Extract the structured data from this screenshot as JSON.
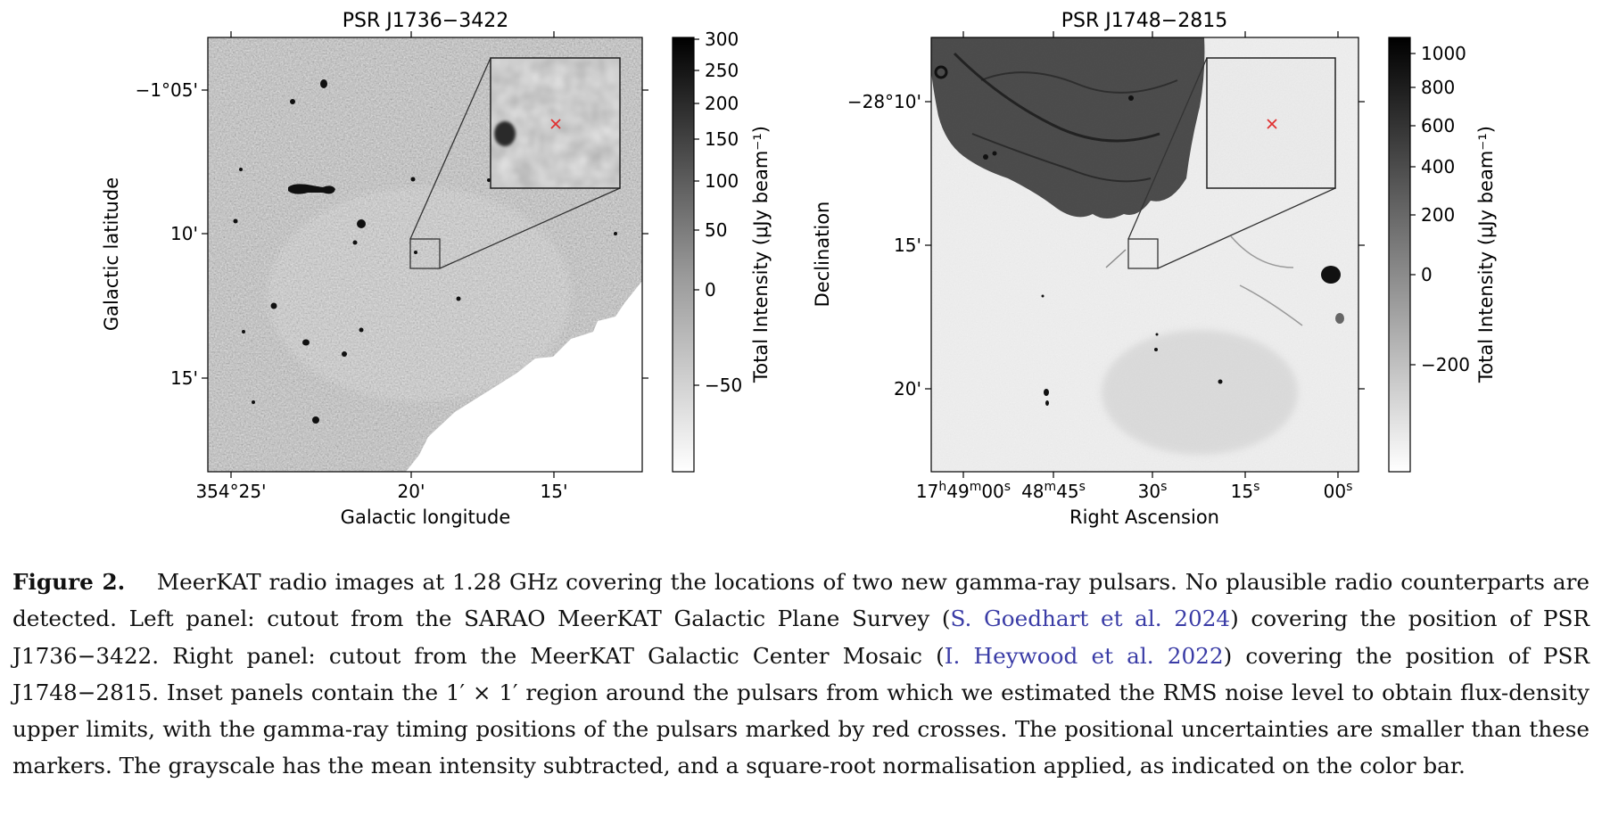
{
  "left_panel": {
    "title": "PSR J1736−3422",
    "xlabel": "Galactic longitude",
    "ylabel": "Galactic latitude",
    "xticks": [
      "354°25'",
      "20'",
      "15'"
    ],
    "yticks": [
      "−1°05'",
      "10'",
      "15'"
    ],
    "colorbar": {
      "label": "Total Intensity (μJy beam⁻¹)",
      "ticks": [
        "300",
        "250",
        "200",
        "150",
        "100",
        "50",
        "0",
        "−50"
      ],
      "scale": "sqrt"
    }
  },
  "right_panel": {
    "title": "PSR J1748−2815",
    "xlabel": "Right Ascension",
    "ylabel": "Declination",
    "xticks": [
      {
        "main": "17",
        "s1": "h",
        "m2": "49",
        "s2": "m",
        "m3": "00",
        "s3": "s"
      },
      {
        "main": "48",
        "s1": "m",
        "m2": "45",
        "s2": "s"
      },
      {
        "main": "30",
        "s1": "s"
      },
      {
        "main": "15",
        "s1": "s"
      },
      {
        "main": "00",
        "s1": "s"
      }
    ],
    "yticks": [
      "−28°10'",
      "15'",
      "20'"
    ],
    "colorbar": {
      "label": "Total Intensity (μJy beam⁻¹)",
      "ticks": [
        "1000",
        "800",
        "600",
        "400",
        "200",
        "0",
        "−200"
      ],
      "scale": "sqrt"
    }
  },
  "marker_color": "#e03030",
  "caption": {
    "label": "Figure 2.",
    "t1": "MeerKAT radio images at 1.28 GHz covering the locations of two new gamma-ray pulsars.  No plausible radio counterparts are detected.  Left panel:  cutout from the SARAO MeerKAT Galactic Plane Survey (",
    "cite1": "S. Goedhart et al. 2024",
    "t2": ") covering the position of PSR J1736−3422. Right panel: cutout from the MeerKAT Galactic Center Mosaic (",
    "cite2": "I. Heywood et al. 2022",
    "t3": ") covering the position of PSR J1748−2815.  Inset panels contain the 1′ × 1′ region around the pulsars from which we estimated the RMS noise level to obtain flux-density upper limits, with the gamma-ray timing positions of the pulsars marked by red crosses. The positional uncertainties are smaller than these markers. The grayscale has the mean intensity subtracted, and a square-root normalisation applied, as indicated on the color bar."
  }
}
